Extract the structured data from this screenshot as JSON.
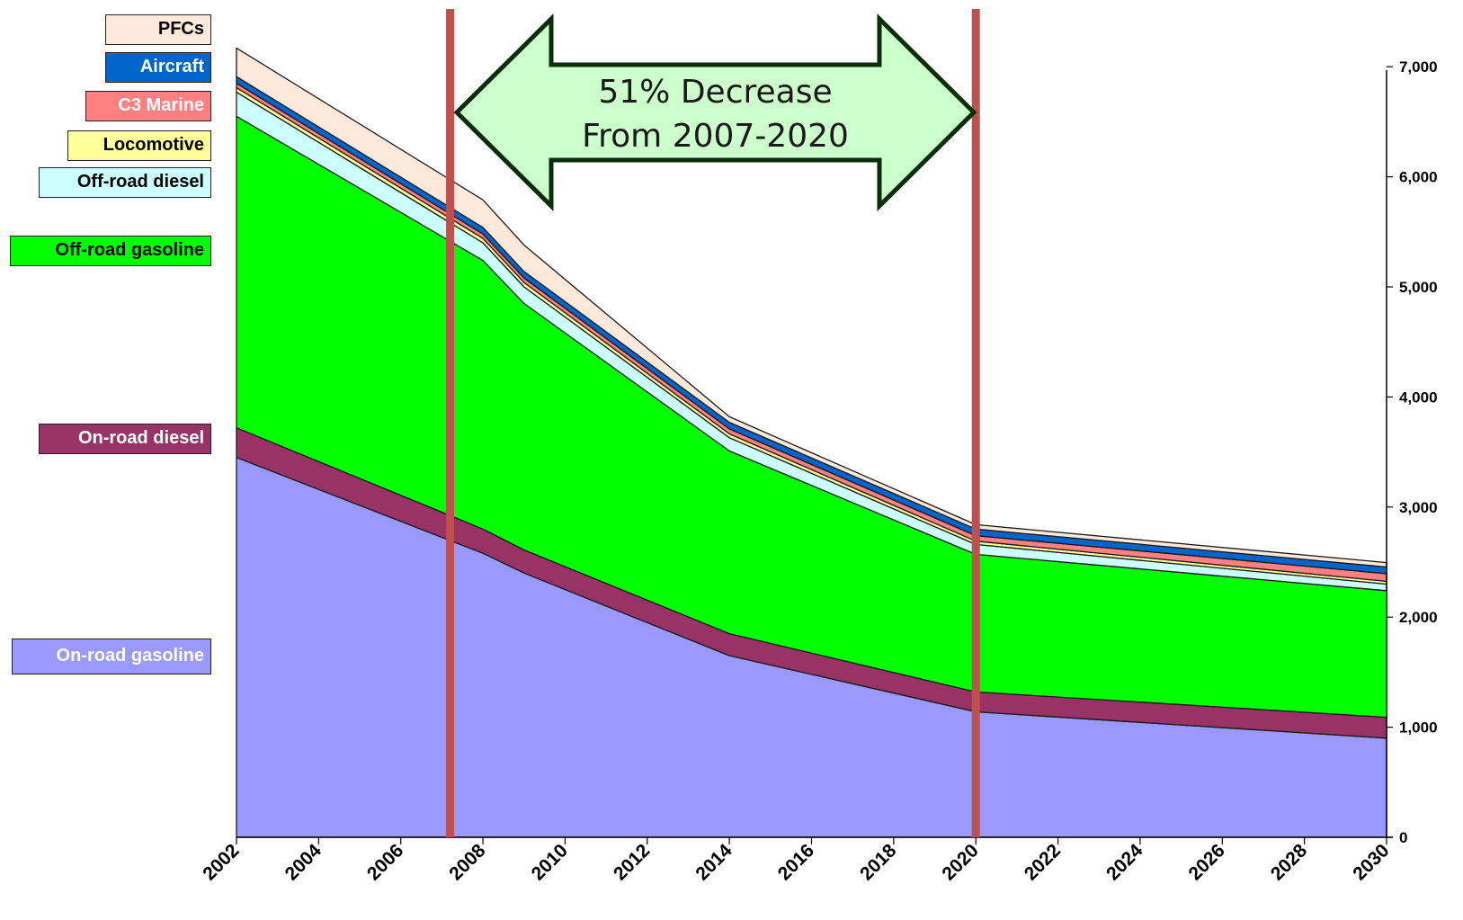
{
  "chart_data": {
    "type": "area",
    "stacked": true,
    "x": [
      2002,
      2008,
      2009,
      2014,
      2020,
      2030
    ],
    "xticks": [
      "2002",
      "2004",
      "2006",
      "2008",
      "2010",
      "2012",
      "2014",
      "2016",
      "2018",
      "2020",
      "2022",
      "2024",
      "2026",
      "2028",
      "2030"
    ],
    "yticks": [
      "0",
      "1,000",
      "2,000",
      "3,000",
      "4,000",
      "5,000",
      "6,000",
      "7,000"
    ],
    "ylim": [
      0,
      7500
    ],
    "xlim": [
      2002,
      2030
    ],
    "y_axis_side": "right",
    "grid": false,
    "legend_position": "left",
    "series": [
      {
        "name": "On-road gasoline",
        "color": "#9999ff",
        "text_color": "#ffffff",
        "values": [
          3450,
          2580,
          2400,
          1650,
          1140,
          900
        ]
      },
      {
        "name": "On-road diesel",
        "color": "#993366",
        "text_color": "#ffffff",
        "values": [
          270,
          220,
          210,
          200,
          180,
          190
        ]
      },
      {
        "name": "Off-road gasoline",
        "color": "#00ff00",
        "text_color": "#000000",
        "values": [
          2830,
          2440,
          2240,
          1660,
          1250,
          1150
        ]
      },
      {
        "name": "Off-road diesel",
        "color": "#ccffff",
        "text_color": "#000000",
        "values": [
          220,
          160,
          150,
          120,
          90,
          60
        ]
      },
      {
        "name": "Locomotive",
        "color": "#ffff99",
        "text_color": "#000000",
        "values": [
          40,
          40,
          40,
          35,
          30,
          25
        ]
      },
      {
        "name": "C3 Marine",
        "color": "#ff8080",
        "text_color": "#ffffff",
        "values": [
          40,
          40,
          40,
          45,
          50,
          70
        ]
      },
      {
        "name": "Aircraft",
        "color": "#0066cc",
        "text_color": "#ffffff",
        "values": [
          60,
          60,
          60,
          60,
          60,
          60
        ]
      },
      {
        "name": "PFCs",
        "color": "#fde9d9",
        "text_color": "#000000",
        "values": [
          260,
          250,
          240,
          50,
          40,
          40
        ]
      }
    ],
    "reference_lines": [
      {
        "x": 2007.2,
        "color": "#c0504d"
      },
      {
        "x": 2020,
        "color": "#c0504d"
      }
    ],
    "annotation": {
      "line1": "51% Decrease",
      "line2": "From 2007-2020",
      "fill": "#ccffcc",
      "stroke": "#0a2e0a"
    }
  }
}
